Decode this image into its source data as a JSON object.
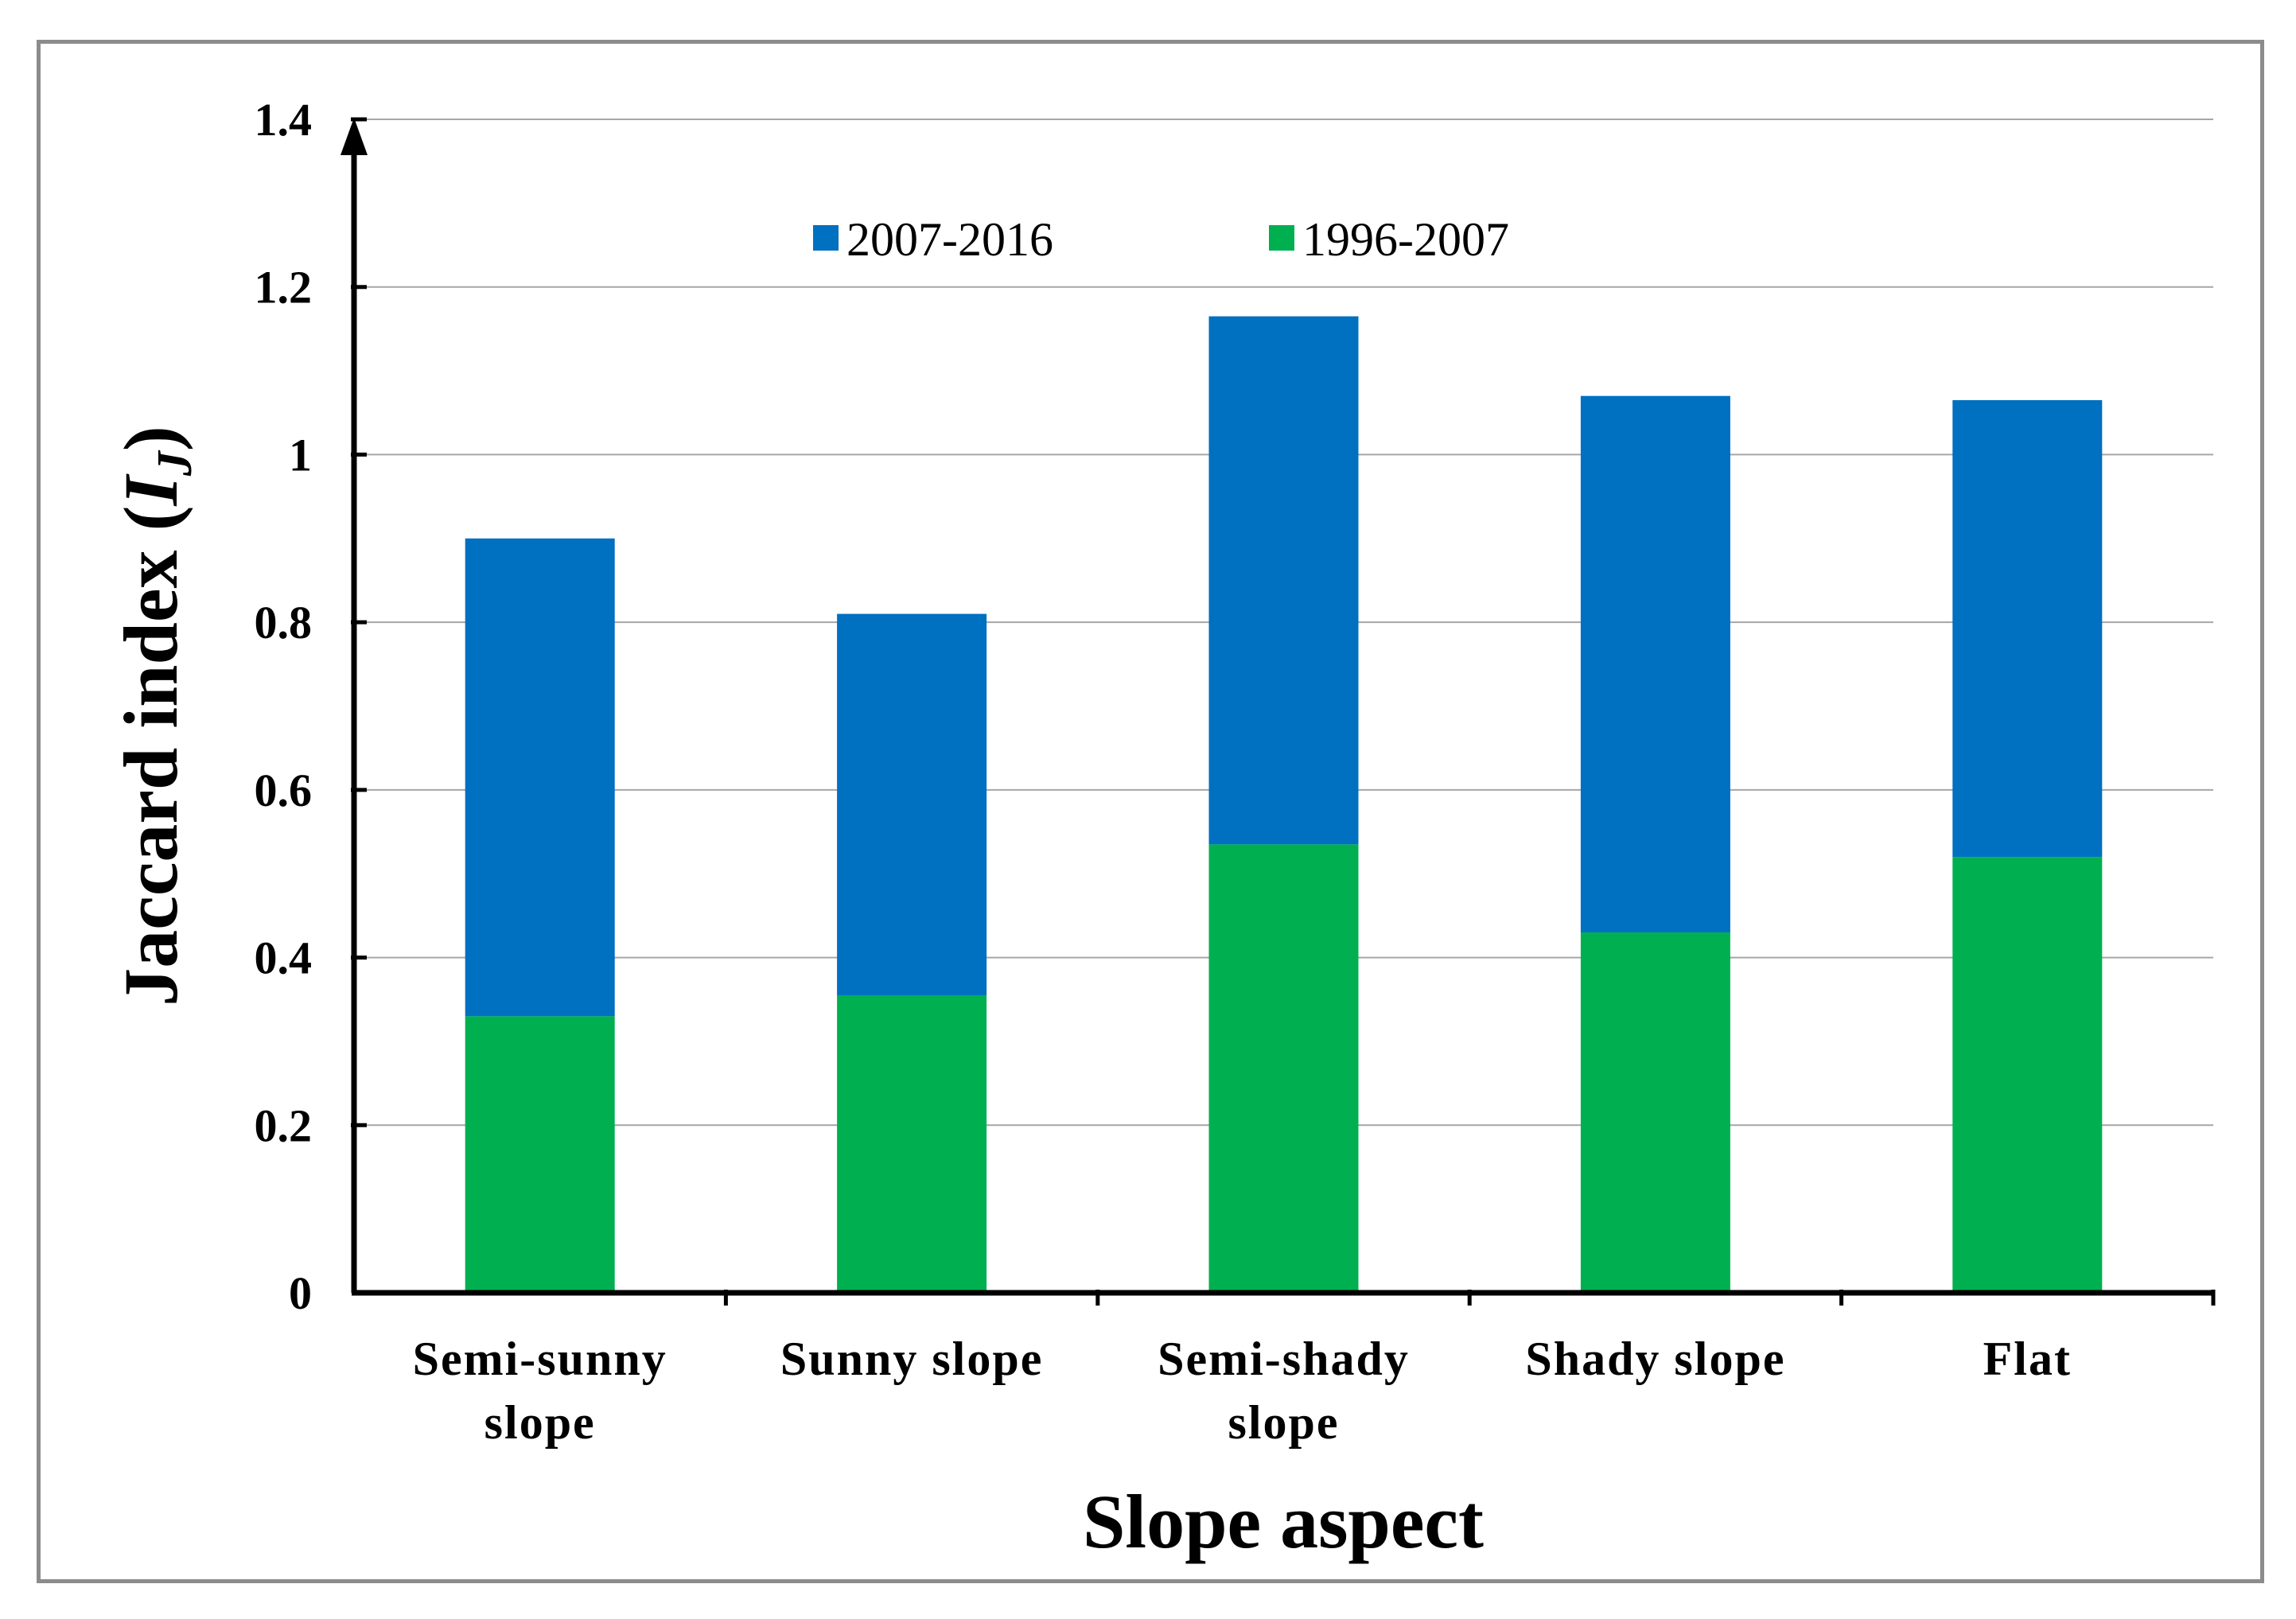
{
  "chart_data": {
    "type": "bar",
    "stacked": true,
    "categories": [
      [
        "Semi-sunny",
        "slope"
      ],
      [
        "Sunny slope"
      ],
      [
        "Semi-shady",
        "slope"
      ],
      [
        "Shady slope"
      ],
      [
        "Flat"
      ]
    ],
    "series": [
      {
        "name": "1996-2007",
        "color": "#00b050",
        "values": [
          0.33,
          0.355,
          0.535,
          0.43,
          0.52
        ]
      },
      {
        "name": "2007-2016",
        "color": "#0070c0",
        "values": [
          0.57,
          0.455,
          0.63,
          0.64,
          0.545
        ]
      }
    ],
    "legend_order": [
      1,
      0
    ],
    "legend_position": "top-center",
    "xlabel": "Slope aspect",
    "ylabel": "Jaccard index (",
    "ylabel_symbol": "I",
    "ylabel_subscript": "J",
    "ylabel_close": ")",
    "ylim": [
      0,
      1.4
    ],
    "yticks": [
      "0",
      "0.2",
      "0.4",
      "0.6",
      "0.8",
      "1",
      "1.2",
      "1.4"
    ],
    "grid": true
  }
}
